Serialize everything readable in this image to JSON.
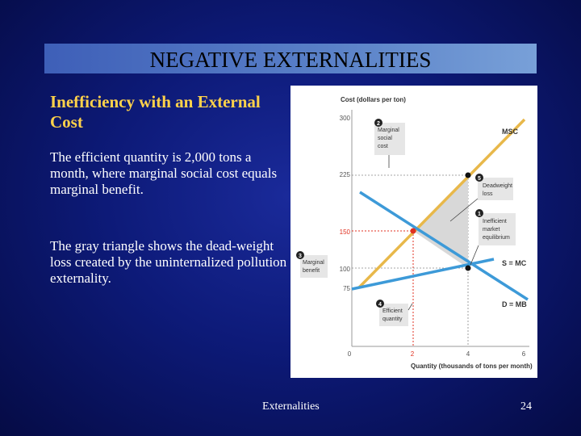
{
  "slide": {
    "title": "NEGATIVE EXTERNALITIES",
    "subtitle": "Inefficiency with an External Cost",
    "paragraph_1": "The efficient quantity is 2,000 tons a month, where marginal social cost equals marginal benefit.",
    "paragraph_2": "The gray triangle shows the dead-weight loss created by the uninternalized pollution externality.",
    "footer": "Externalities",
    "page_number": "24"
  },
  "figure": {
    "y_axis_label": "Cost (dollars per ton)",
    "x_axis_label": "Quantity (thousands of tons per month)",
    "y_ticks": [
      "300",
      "225",
      "150",
      "100",
      "75"
    ],
    "x_ticks": [
      "0",
      "2",
      "4",
      "6"
    ],
    "curves": {
      "msc": "MSC",
      "s_mc": "S = MC",
      "d_mb": "D = MB"
    },
    "callouts": {
      "c1_num": "1",
      "c1_line1": "Inefficient",
      "c1_line2": "market",
      "c1_line3": "equilibrium",
      "c2_num": "2",
      "c2_line1": "Marginal",
      "c2_line2": "social",
      "c2_line3": "cost",
      "c3_num": "3",
      "c3_line1": "Marginal",
      "c3_line2": "benefit",
      "c4_num": "4",
      "c4_line1": "Efficient",
      "c4_line2": "quantity",
      "c5_num": "5",
      "c5_line1": "Deadweight",
      "c5_line2": "loss"
    },
    "colors": {
      "msc": "#e8b84a",
      "s_mc": "#3d9ad8",
      "d_mb": "#3d9ad8",
      "deadweight": "#d8d8d8",
      "accent": "#e03020",
      "callout_bg": "#e6e6e6"
    }
  }
}
